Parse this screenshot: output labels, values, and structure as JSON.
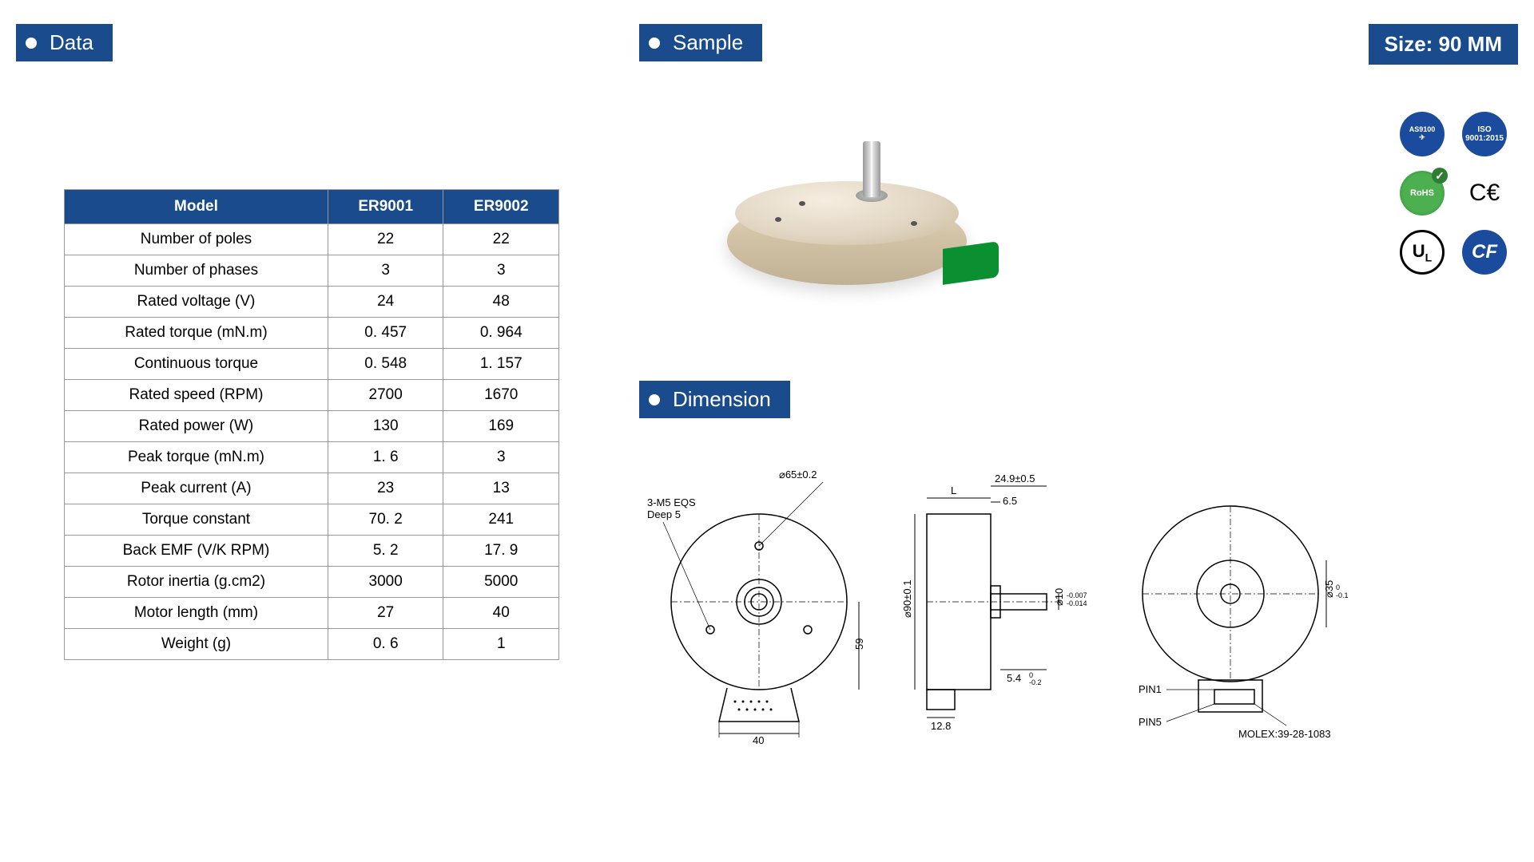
{
  "headers": {
    "data": "Data",
    "sample": "Sample",
    "dimension": "Dimension",
    "size_label": "Size:  90 MM"
  },
  "colors": {
    "brand": "#1a4b8c",
    "table_border": "#999999",
    "pcb_green": "#0a9030",
    "motor_tan": "#d4c4a8"
  },
  "table": {
    "columns": [
      "Model",
      "ER9001",
      "ER9002"
    ],
    "rows": [
      [
        "Number of poles",
        "22",
        "22"
      ],
      [
        "Number of phases",
        "3",
        "3"
      ],
      [
        "Rated  voltage (V)",
        "24",
        "48"
      ],
      [
        "Rated torque (mN.m)",
        "0. 457",
        "0. 964"
      ],
      [
        "Continuous torque",
        "0. 548",
        "1. 157"
      ],
      [
        "Rated speed (RPM)",
        "2700",
        "1670"
      ],
      [
        "Rated power (W)",
        "130",
        "169"
      ],
      [
        "Peak torque (mN.m)",
        "1. 6",
        "3"
      ],
      [
        "Peak current (A)",
        "23",
        "13"
      ],
      [
        "Torque constant",
        "70. 2",
        "241"
      ],
      [
        "Back EMF (V/K RPM)",
        "5. 2",
        "17. 9"
      ],
      [
        "Rotor inertia (g.cm2)",
        "3000",
        "5000"
      ],
      [
        "Motor length (mm)",
        "27",
        "40"
      ],
      [
        "Weight (g)",
        "0. 6",
        "1"
      ]
    ]
  },
  "certifications": {
    "as9100": "AS9100",
    "iso": "ISO",
    "rohs": "RoHS",
    "ce": "C€",
    "ul": "UL",
    "cf": "CF"
  },
  "dimension_labels": {
    "front": {
      "holes": "3-M5 EQS",
      "holes_depth": "Deep 5",
      "bolt_circle": "⌀65±0.2",
      "width_bottom": "40",
      "height_side": "59"
    },
    "side": {
      "L": "L",
      "top_dim": "24.9±0.5",
      "shoulder": "6.5",
      "body_dia": "⌀90±0.1",
      "shaft_ext": "5.4",
      "shaft_ext_tol": "0\n-0.2",
      "bottom_step": "12.8",
      "shaft_dia": "⌀10",
      "shaft_dia_tol": "-0.007\n-0.014"
    },
    "back": {
      "hub_dia": "⌀35",
      "hub_dia_tol": "0\n-0.1",
      "pin1": "PIN1",
      "pin5": "PIN5",
      "connector": "MOLEX:39-28-1083"
    }
  }
}
